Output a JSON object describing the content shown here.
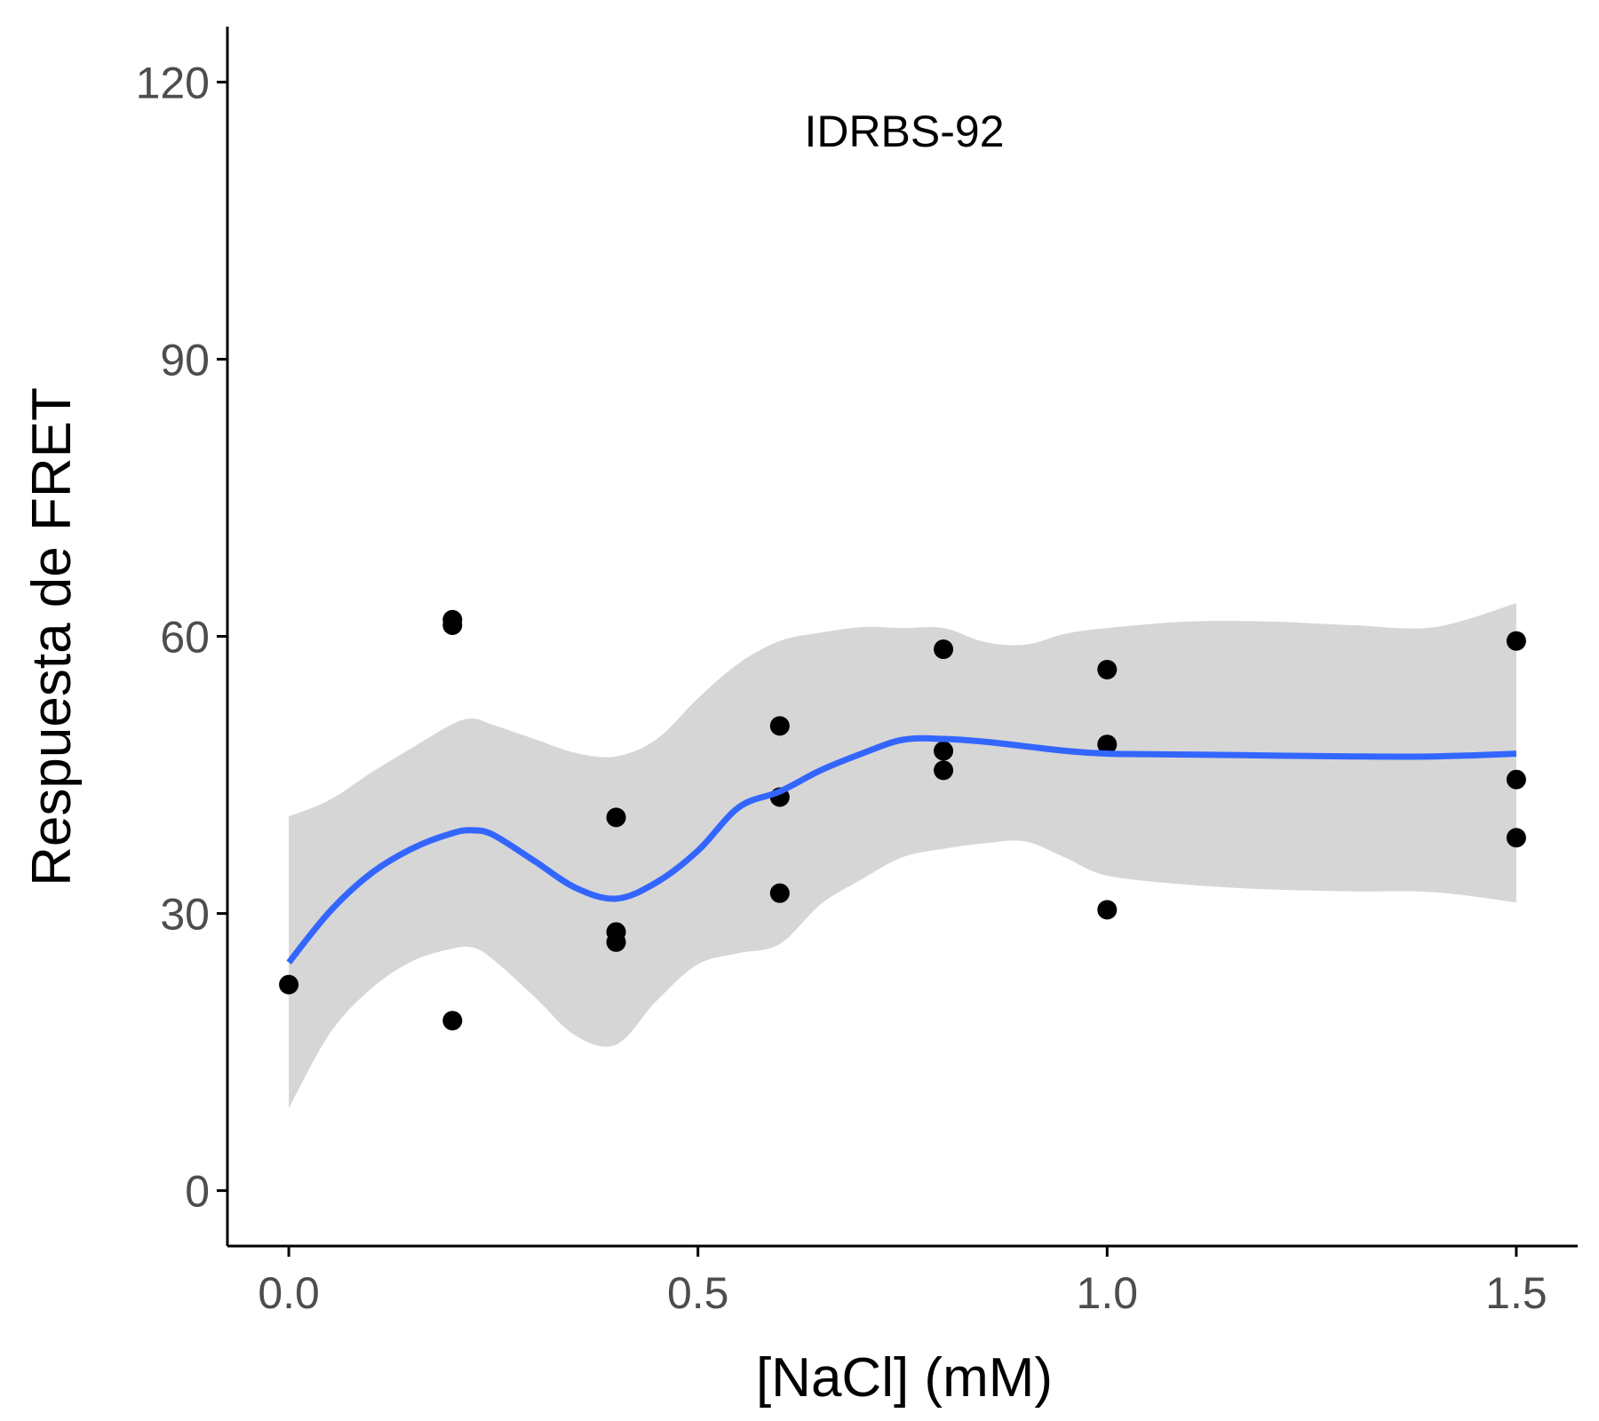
{
  "chart_data": {
    "type": "scatter",
    "annotation": "IDRBS-92",
    "xlabel": "[NaCl] (mM)",
    "ylabel": "Respuesta de FRET",
    "xlim": [
      -0.075,
      1.575
    ],
    "ylim": [
      -6,
      126
    ],
    "x_ticks": [
      {
        "value": 0.0,
        "label": "0.0"
      },
      {
        "value": 0.5,
        "label": "0.5"
      },
      {
        "value": 1.0,
        "label": "1.0"
      },
      {
        "value": 1.5,
        "label": "1.5"
      }
    ],
    "y_ticks": [
      {
        "value": 0,
        "label": "0"
      },
      {
        "value": 30,
        "label": "30"
      },
      {
        "value": 60,
        "label": "60"
      },
      {
        "value": 90,
        "label": "90"
      },
      {
        "value": 120,
        "label": "120"
      }
    ],
    "grid": false,
    "points": [
      {
        "x": 0.0,
        "y": 22.3
      },
      {
        "x": 0.2,
        "y": 61.8
      },
      {
        "x": 0.2,
        "y": 61.2
      },
      {
        "x": 0.2,
        "y": 18.4
      },
      {
        "x": 0.4,
        "y": 40.4
      },
      {
        "x": 0.4,
        "y": 28.0
      },
      {
        "x": 0.4,
        "y": 26.9
      },
      {
        "x": 0.6,
        "y": 50.3
      },
      {
        "x": 0.6,
        "y": 42.6
      },
      {
        "x": 0.6,
        "y": 32.2
      },
      {
        "x": 0.8,
        "y": 58.6
      },
      {
        "x": 0.8,
        "y": 47.6
      },
      {
        "x": 0.8,
        "y": 45.5
      },
      {
        "x": 1.0,
        "y": 56.4
      },
      {
        "x": 1.0,
        "y": 48.3
      },
      {
        "x": 1.0,
        "y": 30.4
      },
      {
        "x": 1.5,
        "y": 59.5
      },
      {
        "x": 1.5,
        "y": 44.5
      },
      {
        "x": 1.5,
        "y": 38.2
      }
    ],
    "smooth": {
      "x": [
        0.0,
        0.05,
        0.1,
        0.15,
        0.2,
        0.225,
        0.25,
        0.3,
        0.35,
        0.4,
        0.45,
        0.5,
        0.55,
        0.6,
        0.65,
        0.7,
        0.75,
        0.8,
        0.85,
        0.9,
        0.95,
        1.0,
        1.1,
        1.2,
        1.3,
        1.4,
        1.5
      ],
      "y": [
        24.7,
        30.2,
        34.3,
        37.0,
        38.7,
        39.0,
        38.5,
        35.7,
        32.8,
        31.6,
        33.4,
        36.8,
        41.5,
        43.2,
        45.5,
        47.3,
        48.8,
        48.9,
        48.6,
        48.1,
        47.6,
        47.3,
        47.2,
        47.1,
        47.0,
        47.0,
        47.3
      ],
      "lower": [
        8.9,
        17.0,
        21.8,
        24.8,
        26.2,
        26.3,
        25.0,
        21.0,
        16.8,
        15.8,
        20.6,
        24.5,
        25.7,
        26.7,
        31.0,
        33.7,
        36.1,
        37.0,
        37.6,
        37.8,
        36.0,
        34.1,
        33.1,
        32.6,
        32.4,
        32.3,
        31.2
      ],
      "upper": [
        40.5,
        42.3,
        45.2,
        47.9,
        50.5,
        51.1,
        50.4,
        48.9,
        47.4,
        47.0,
        48.9,
        53.3,
        57.1,
        59.5,
        60.4,
        61.0,
        60.9,
        60.9,
        59.4,
        59.1,
        60.3,
        60.9,
        61.6,
        61.6,
        61.2,
        61.0,
        63.6
      ],
      "line_color": "#3366FF",
      "band_color": "#D6D6D6"
    },
    "point_color": "#000000"
  }
}
